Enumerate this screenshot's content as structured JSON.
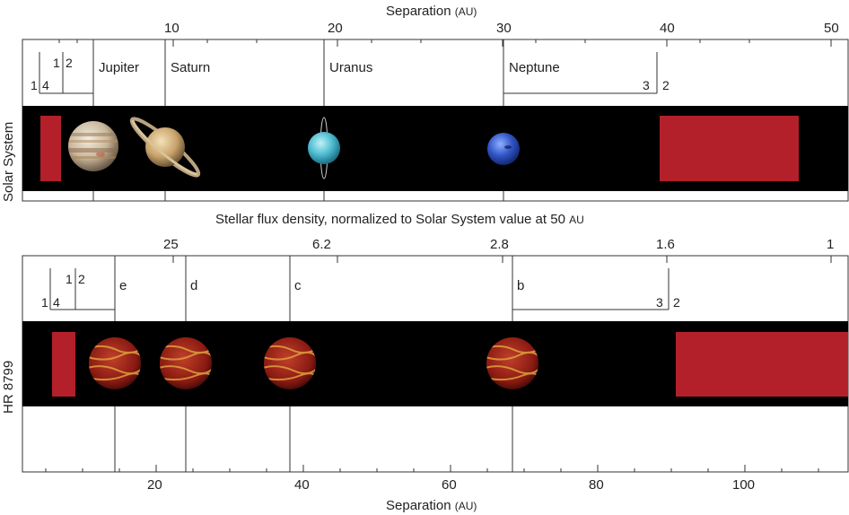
{
  "top_panel": {
    "axis_title": "Separation",
    "axis_unit": "(AU)",
    "ticks": [
      "10",
      "20",
      "30",
      "40",
      "50"
    ],
    "side_label": "Solar System",
    "planets": [
      {
        "name": "Jupiter",
        "icon": "jupiter-icon",
        "au": 5.2
      },
      {
        "name": "Saturn",
        "icon": "saturn-icon",
        "au": 9.5
      },
      {
        "name": "Uranus",
        "icon": "uranus-icon",
        "au": 19.2
      },
      {
        "name": "Neptune",
        "icon": "neptune-icon",
        "au": 30.1
      }
    ],
    "inner_resonance": {
      "a": "1",
      "b": "4",
      "c": "1",
      "d": "2"
    },
    "outer_resonance": {
      "a": "3",
      "b": "2"
    }
  },
  "middle": {
    "flux_title": "Stellar flux density, normalized to Solar System value at 50",
    "flux_unit": "AU",
    "flux_ticks": [
      "25",
      "6.2",
      "2.8",
      "1.6",
      "1"
    ]
  },
  "bottom_panel": {
    "axis_title": "Separation",
    "axis_unit": "(AU)",
    "ticks": [
      "20",
      "40",
      "60",
      "80",
      "100"
    ],
    "side_label": "HR 8799",
    "planets": [
      {
        "name": "e",
        "au": 14.5
      },
      {
        "name": "d",
        "au": 24
      },
      {
        "name": "c",
        "au": 38
      },
      {
        "name": "b",
        "au": 68
      }
    ],
    "inner_resonance": {
      "a": "1",
      "b": "4",
      "c": "1",
      "d": "2"
    },
    "outer_resonance": {
      "a": "3",
      "b": "2"
    }
  },
  "colors": {
    "band": "#000000",
    "debris_belt": "#b3202a",
    "exoplanet_base": "#8a1a12",
    "exoplanet_stripe": "#e0a040"
  }
}
